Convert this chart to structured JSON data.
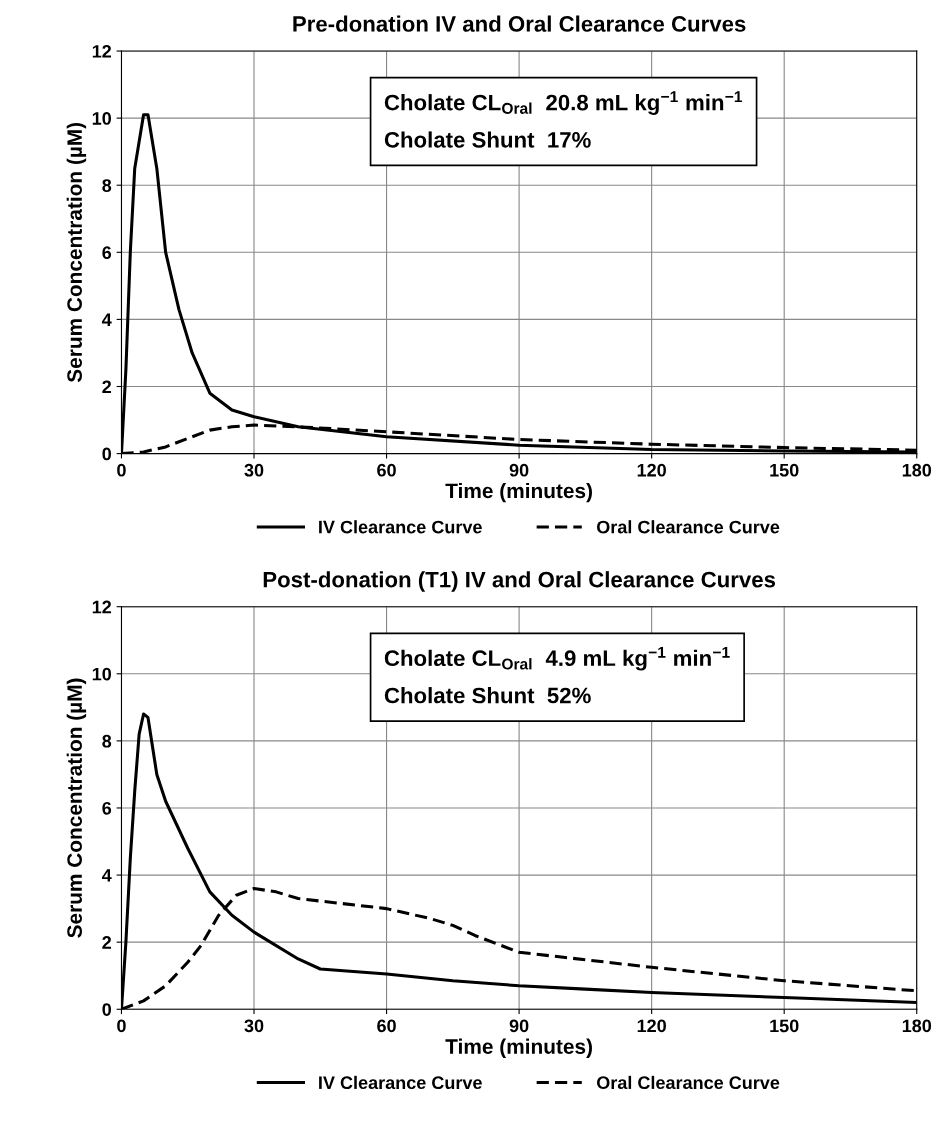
{
  "chart_data": [
    {
      "type": "line",
      "title": "Pre-donation IV and Oral Clearance Curves",
      "xlabel": "Time (minutes)",
      "ylabel": "Serum Concentration (µM)",
      "xlim": [
        0,
        180
      ],
      "xticks": [
        0,
        30,
        60,
        90,
        120,
        150,
        180
      ],
      "ylim": [
        0,
        12
      ],
      "yticks": [
        0,
        2,
        4,
        6,
        8,
        10,
        12
      ],
      "grid": true,
      "legend": "bottom",
      "marker": "none",
      "annotations": [
        "Cholate CL$_{Oral}$  20.8 mL kg$^{−1}$ min$^{−1}$",
        "Cholate Shunt  17%"
      ],
      "series": [
        {
          "name": "IV Clearance Curve",
          "color": "#000000",
          "line_style": "solid",
          "x": [
            0,
            1,
            2,
            3,
            5,
            6,
            8,
            10,
            13,
            16,
            20,
            25,
            30,
            40,
            60,
            90,
            120,
            150,
            180
          ],
          "values": [
            0,
            2.5,
            6,
            8.5,
            10.1,
            10.1,
            8.5,
            6,
            4.3,
            3,
            1.8,
            1.3,
            1.1,
            0.8,
            0.5,
            0.25,
            0.12,
            0.08,
            0.05
          ]
        },
        {
          "name": "Oral Clearance Curve",
          "color": "#000000",
          "line_style": "dashed",
          "x": [
            0,
            5,
            10,
            15,
            20,
            25,
            30,
            40,
            60,
            90,
            120,
            150,
            180
          ],
          "values": [
            0,
            0.05,
            0.2,
            0.45,
            0.7,
            0.8,
            0.85,
            0.8,
            0.65,
            0.42,
            0.28,
            0.18,
            0.1
          ]
        }
      ]
    },
    {
      "type": "line",
      "title": "Post-donation (T1) IV and Oral Clearance Curves",
      "xlabel": "Time (minutes)",
      "ylabel": "Serum Concentration (µM)",
      "xlim": [
        0,
        180
      ],
      "xticks": [
        0,
        30,
        60,
        90,
        120,
        150,
        180
      ],
      "ylim": [
        0,
        12
      ],
      "yticks": [
        0,
        2,
        4,
        6,
        8,
        10,
        12
      ],
      "grid": true,
      "legend": "bottom",
      "marker": "none",
      "annotations": [
        "Cholate CL$_{Oral}$  4.9 mL kg$^{−1}$ min$^{−1}$",
        "Cholate Shunt  52%"
      ],
      "series": [
        {
          "name": "IV Clearance Curve",
          "color": "#000000",
          "line_style": "solid",
          "x": [
            0,
            1,
            2,
            3,
            4,
            5,
            6,
            8,
            10,
            15,
            20,
            25,
            30,
            40,
            45,
            60,
            75,
            90,
            105,
            120,
            150,
            180
          ],
          "values": [
            0,
            2,
            4.5,
            6.5,
            8.2,
            8.8,
            8.7,
            7,
            6.2,
            4.8,
            3.5,
            2.8,
            2.3,
            1.5,
            1.2,
            1.05,
            0.85,
            0.7,
            0.6,
            0.5,
            0.35,
            0.2
          ]
        },
        {
          "name": "Oral Clearance Curve",
          "color": "#000000",
          "line_style": "dashed",
          "x": [
            0,
            5,
            10,
            15,
            18,
            22,
            26,
            30,
            35,
            40,
            50,
            60,
            70,
            75,
            80,
            90,
            100,
            120,
            150,
            180
          ],
          "values": [
            0,
            0.25,
            0.7,
            1.4,
            1.9,
            2.8,
            3.4,
            3.6,
            3.5,
            3.3,
            3.15,
            3.0,
            2.7,
            2.5,
            2.2,
            1.7,
            1.55,
            1.25,
            0.85,
            0.55
          ]
        }
      ]
    }
  ]
}
